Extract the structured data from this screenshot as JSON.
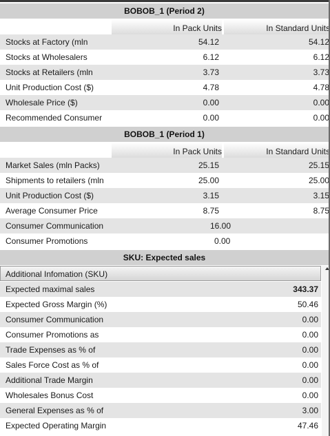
{
  "section1": {
    "title": "BOBOB_1 (Period 2)",
    "col1": "In Pack Units",
    "col2": "In Standard Units",
    "rows": [
      {
        "label": "Stocks at Factory (mln",
        "v1": "54.12",
        "v2": "54.12"
      },
      {
        "label": "Stocks at Wholesalers",
        "v1": "6.12",
        "v2": "6.12"
      },
      {
        "label": "Stocks at Retailers (mln",
        "v1": "3.73",
        "v2": "3.73"
      },
      {
        "label": "Unit Production Cost ($)",
        "v1": "4.78",
        "v2": "4.78"
      },
      {
        "label": "Wholesale Price ($)",
        "v1": "0.00",
        "v2": "0.00"
      },
      {
        "label": "Recommended Consumer",
        "v1": "0.00",
        "v2": "0.00"
      }
    ]
  },
  "section2": {
    "title": "BOBOB_1 (Period 1)",
    "col1": "In Pack Units",
    "col2": "In Standard Units",
    "rows": [
      {
        "label": "Market Sales (mln Packs)",
        "v1": "25.15",
        "v2": "25.15"
      },
      {
        "label": "Shipments to retailers (mln",
        "v1": "25.00",
        "v2": "25.00"
      },
      {
        "label": "Unit Production Cost ($)",
        "v1": "3.15",
        "v2": "3.15"
      },
      {
        "label": "Average Consumer Price",
        "v1": "8.75",
        "v2": "8.75"
      }
    ],
    "merged_rows": [
      {
        "label": "Consumer Communication",
        "value": "16.00"
      },
      {
        "label": "Consumer Promotions",
        "value": "0.00"
      }
    ]
  },
  "section3": {
    "title": "SKU: Expected sales",
    "subheader": "Additional Infomation (SKU)",
    "rows": [
      {
        "label": "Expected maximal sales",
        "value": "343.37"
      },
      {
        "label": "Expected Gross Margin (%)",
        "value": "50.46"
      },
      {
        "label": "Consumer Communication",
        "value": "0.00"
      },
      {
        "label": "Consumer Promotions as",
        "value": "0.00"
      },
      {
        "label": "Trade Expenses as % of",
        "value": "0.00"
      },
      {
        "label": "Sales Force Cost as % of",
        "value": "0.00"
      },
      {
        "label": "Additional Trade Margin",
        "value": "0.00"
      },
      {
        "label": "Wholesales Bonus Cost",
        "value": "0.00"
      },
      {
        "label": "General Expenses as % of",
        "value": "3.00"
      },
      {
        "label": "Expected Operating Margin",
        "value": "47.46"
      }
    ]
  },
  "icons": {
    "scroll_up": "scroll-up-arrow-icon"
  }
}
